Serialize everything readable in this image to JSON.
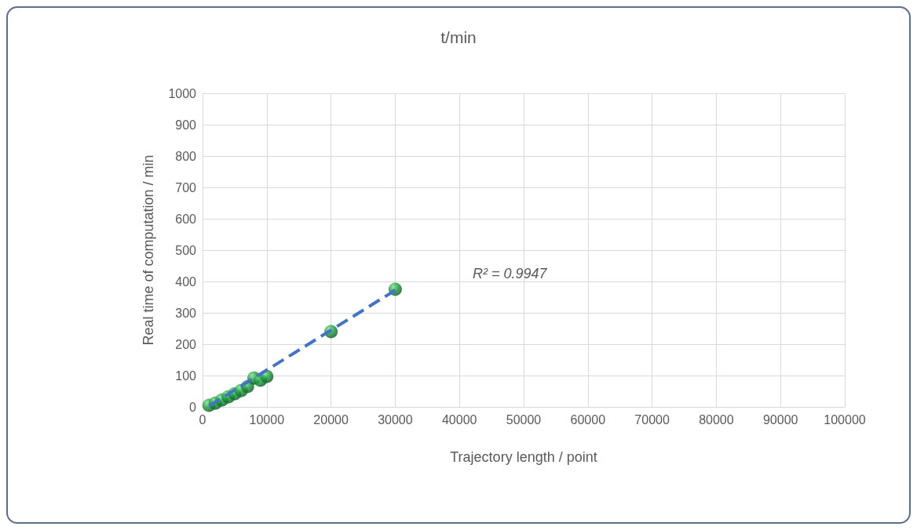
{
  "chart_data": {
    "type": "scatter",
    "title": "t/min",
    "xlabel": "Trajectory length / point",
    "ylabel": "Real time of computation / min",
    "x": [
      1000,
      2000,
      3000,
      4000,
      5000,
      6000,
      7000,
      8000,
      9000,
      10000,
      20000,
      30000
    ],
    "series": [
      {
        "color": "#1a9c3e",
        "marker": "circle",
        "values": [
          5,
          12,
          22,
          32,
          42,
          52,
          65,
          92,
          85,
          97,
          240,
          375
        ]
      },
      {
        "type": "line",
        "color": "#4472c4",
        "line_style": "dashed",
        "marker": "none",
        "x": [
          1000,
          30000
        ],
        "values": [
          3,
          372
        ]
      }
    ],
    "annotations": [
      "R² = 0.9947"
    ],
    "xlim": [
      0,
      100000
    ],
    "xticks": [
      0,
      10000,
      20000,
      30000,
      40000,
      50000,
      60000,
      70000,
      80000,
      90000,
      100000
    ],
    "ylim": [
      0,
      1000
    ],
    "yticks": [
      0,
      100,
      200,
      300,
      400,
      500,
      600,
      700,
      800,
      900,
      1000
    ],
    "grid": true
  }
}
